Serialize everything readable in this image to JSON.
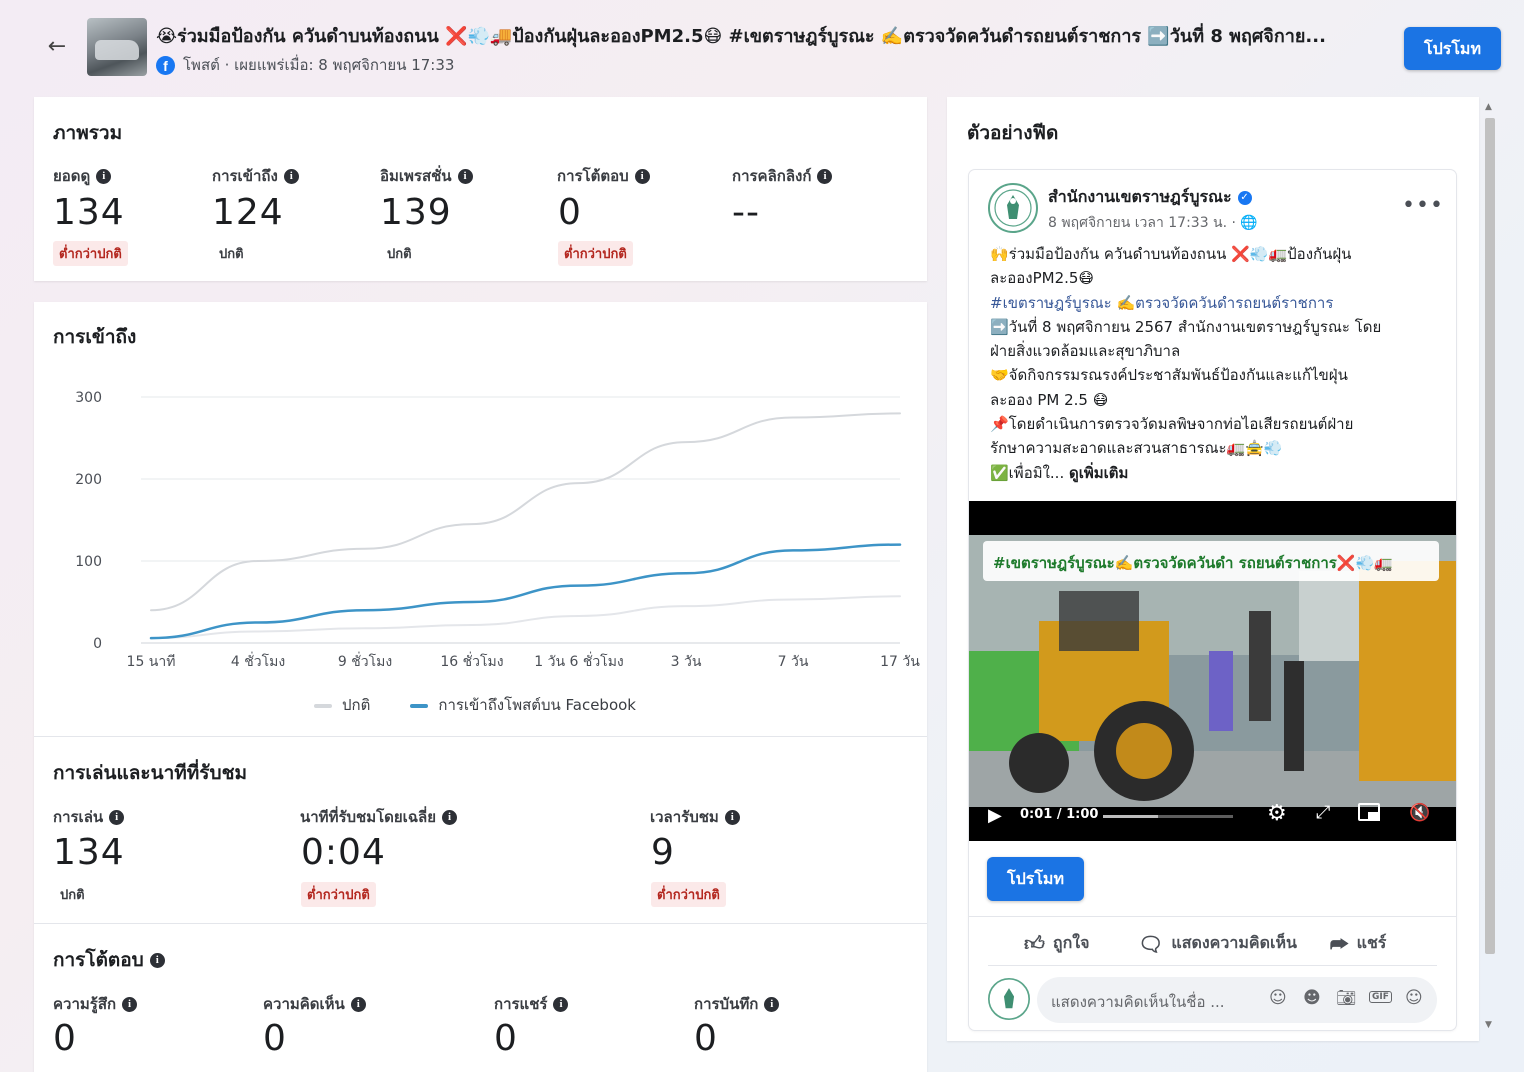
{
  "header": {
    "title": "😭ร่วมมือป้องกัน ควันดำบนท้องถนน ❌💨🚚ป้องกันฝุ่นละอองPM2.5😷 #เขตราษฎร์บูรณะ ✍️ตรวจวัดควันดำรถยนต์ราชการ ➡️วันที่ 8 พฤศจิกาย...",
    "subtitle": "โพสต์ · เผยแพร่เมื่อ: 8 พฤศจิกายน 17:33",
    "promote_label": "โปรโมท"
  },
  "overview": {
    "title": "ภาพรวม",
    "metrics": [
      {
        "label": "ยอดดู",
        "value": "134",
        "status": "ต่ำกว่าปกติ"
      },
      {
        "label": "การเข้าถึง",
        "value": "124",
        "status": "ปกติ"
      },
      {
        "label": "อิมเพรสชั่น",
        "value": "139",
        "status": "ปกติ"
      },
      {
        "label": "การโต้ตอบ",
        "value": "0",
        "status": "ต่ำกว่าปกติ"
      },
      {
        "label": "การคลิกลิงก์",
        "value": "--",
        "status": ""
      }
    ]
  },
  "reach": {
    "title": "การเข้าถึง",
    "legend_normal": "ปกติ",
    "legend_reach": "การเข้าถึงโพสต์บน Facebook"
  },
  "chart_data": {
    "type": "line",
    "x": [
      "15 นาที",
      "4 ชั่วโมง",
      "9 ชั่วโมง",
      "16 ชั่วโมง",
      "1 วัน 6 ชั่วโมง",
      "3 วัน",
      "7 วัน",
      "17 วัน"
    ],
    "yticks": [
      "300",
      "200",
      "100",
      "0"
    ],
    "ylim": [
      0,
      300
    ],
    "grid": true,
    "legend_position": "bottom",
    "series": [
      {
        "name": "ปกติ",
        "color": "#d5d8dc",
        "values": [
          40,
          100,
          115,
          145,
          195,
          245,
          275,
          280
        ]
      },
      {
        "name": "ปกติ",
        "color": "#e4e6ea",
        "values": [
          6,
          14,
          18,
          22,
          33,
          45,
          53,
          57
        ]
      },
      {
        "name": "การเข้าถึงโพสต์บน Facebook",
        "color": "#3d94c7",
        "values": [
          6,
          25,
          40,
          50,
          70,
          85,
          113,
          120
        ]
      }
    ]
  },
  "playback": {
    "title": "การเล่นและนาทีที่รับชม",
    "metrics": [
      {
        "label": "การเล่น",
        "value": "134",
        "status": "ปกติ"
      },
      {
        "label": "นาทีที่รับชมโดยเฉลี่ย",
        "value": "0:04",
        "status": "ต่ำกว่าปกติ"
      },
      {
        "label": "เวลารับชม",
        "value": "9",
        "status": "ต่ำกว่าปกติ"
      }
    ]
  },
  "engagement": {
    "title": "การโต้ตอบ",
    "metrics": [
      {
        "label": "ความรู้สึก",
        "value": "0"
      },
      {
        "label": "ความคิดเห็น",
        "value": "0"
      },
      {
        "label": "การแชร์",
        "value": "0"
      },
      {
        "label": "การบันทึก",
        "value": "0"
      }
    ]
  },
  "feed_preview": {
    "title": "ตัวอย่างฟีด",
    "page_name": "สำนักงานเขตราษฎร์บูรณะ",
    "post_time": "8 พฤศจิกายน เวลา 17:33 น. ·",
    "text_lines": [
      "🙌ร่วมมือป้องกัน ควันดำบนท้องถนน ❌💨🚛ป้องกันฝุ่น",
      "ละอองPM2.5😷",
      "#เขตราษฎร์บูรณะ ✍️ตรวจวัดควันดำรถยนต์ราชการ",
      "➡️วันที่  8 พฤศจิกายน 2567 สำนักงานเขตราษฎร์บูรณะ โดย",
      "ฝ่ายสิ่งแวดล้อมและสุขาภิบาล",
      "🤝จัดกิจกรรมรณรงค์ประชาสัมพันธ์ป้องกันและแก้ไขฝุ่น",
      "ละออง PM 2.5 😷",
      "📌โดยดำเนินการตรวจวัดมลพิษจากท่อไอเสียรถยนต์ฝ่าย",
      "รักษาความสะอาดและสวนสาธารณะ🚛🚖💨",
      "✅เพื่อมิใ..."
    ],
    "see_more": "ดูเพิ่มเติม",
    "video_caption": "#เขตราษฎร์บูรณะ✍️ตรวจวัดควันดำ รถยนต์ราชการ❌💨🚛",
    "video_time": "0:01 / 1:00",
    "video_progress": 0.017,
    "promote_label": "โปรโมท",
    "like_label": "ถูกใจ",
    "comment_label": "แสดงความคิดเห็น",
    "share_label": "แชร์",
    "comment_placeholder": "แสดงความคิดเห็นในชื่อ ..."
  }
}
